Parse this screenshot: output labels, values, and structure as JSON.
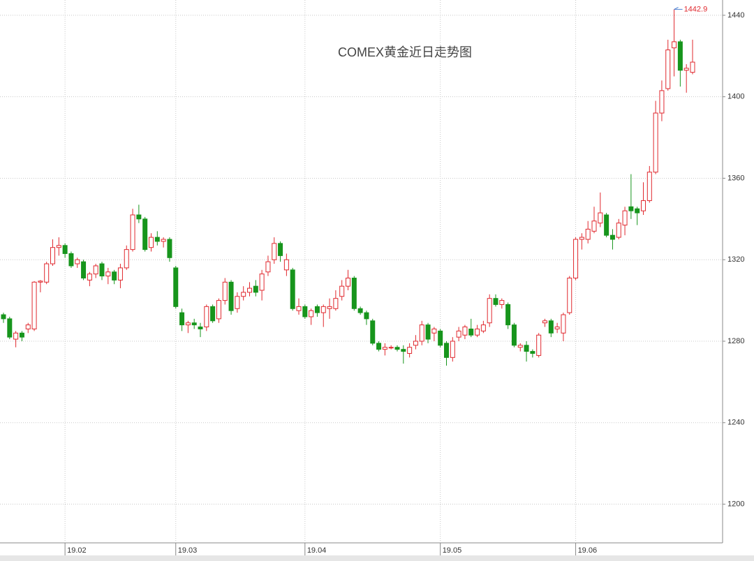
{
  "chart_data": {
    "type": "candlestick",
    "title": "COMEX黄金近日走势图",
    "categories": [
      null,
      null,
      null,
      null,
      null,
      null,
      null,
      null,
      null,
      null,
      "19.02",
      null,
      null,
      null,
      null,
      null,
      null,
      null,
      null,
      null,
      null,
      null,
      null,
      null,
      null,
      null,
      null,
      null,
      "19.03",
      null,
      null,
      null,
      null,
      null,
      null,
      null,
      null,
      null,
      null,
      null,
      null,
      null,
      null,
      null,
      null,
      null,
      null,
      null,
      null,
      "19.04",
      null,
      null,
      null,
      null,
      null,
      null,
      null,
      null,
      null,
      null,
      null,
      null,
      null,
      null,
      null,
      null,
      null,
      null,
      null,
      null,
      null,
      "19.05",
      null,
      null,
      null,
      null,
      null,
      null,
      null,
      null,
      null,
      null,
      null,
      null,
      null,
      null,
      null,
      null,
      null,
      null,
      null,
      null,
      null,
      "19.06",
      null,
      null,
      null,
      null,
      null,
      null,
      null,
      null,
      null,
      null,
      null,
      null,
      null,
      null,
      null,
      null,
      null,
      null,
      null
    ],
    "open": [
      1293,
      1291,
      1281,
      1284,
      1286,
      1286,
      1309,
      1309,
      1318,
      1326,
      1327,
      1323,
      1318,
      1319,
      1310,
      1313,
      1318,
      1312,
      1314,
      1310,
      1316,
      1325,
      1342,
      1340,
      1326,
      1331,
      1329,
      1330,
      1316,
      1294,
      1288,
      1289,
      1287,
      1287,
      1297,
      1291,
      1300,
      1309,
      1296,
      1302,
      1304,
      1307,
      1305,
      1314,
      1320,
      1328,
      1315,
      1315,
      1295,
      1297,
      1292,
      1297,
      1294,
      1296,
      1296,
      1302,
      1307,
      1311,
      1296,
      1294,
      1290,
      1279,
      1276,
      1277,
      1277,
      1276,
      1274,
      1278,
      1280,
      1288,
      1284,
      1285,
      1279,
      1272,
      1282,
      1283,
      1286,
      1283,
      1285,
      1289,
      1301,
      1298,
      1298,
      1288,
      1277,
      1278,
      1275,
      1273,
      1289,
      1290,
      1286,
      1284,
      1294,
      1311,
      1330,
      1330,
      1334,
      1338,
      1342,
      1332,
      1331,
      1337,
      1346,
      1345,
      1344,
      1349,
      1363,
      1392,
      1404,
      1424,
      1427,
      1413,
      1412
    ],
    "high": [
      1294,
      1292,
      1285,
      1285,
      1289,
      1309.5,
      1310,
      1319,
      1330,
      1331,
      1328,
      1324,
      1321,
      1320,
      1314,
      1318,
      1319,
      1316,
      1315,
      1318,
      1327,
      1345,
      1347,
      1341,
      1333,
      1334,
      1331,
      1331,
      1317,
      1296,
      1290,
      1291,
      1289,
      1298,
      1298,
      1301,
      1311,
      1310,
      1304,
      1307,
      1309,
      1310,
      1315,
      1322,
      1331,
      1329,
      1323,
      1316,
      1301,
      1298,
      1296,
      1298,
      1298,
      1301,
      1305,
      1310,
      1315,
      1312,
      1297,
      1295,
      1291,
      1280,
      1279,
      1278,
      1278,
      1278,
      1279,
      1283,
      1290,
      1289,
      1287,
      1286,
      1280,
      1282,
      1287,
      1288,
      1291,
      1288,
      1290,
      1303,
      1303,
      1301,
      1299,
      1289,
      1279,
      1280,
      1276,
      1284,
      1291,
      1291,
      1289,
      1294,
      1312,
      1331,
      1333,
      1339,
      1346,
      1353,
      1343,
      1335,
      1340,
      1346,
      1362,
      1346,
      1358,
      1366,
      1398,
      1408,
      1428,
      1442.9,
      1428,
      1416,
      1428
    ],
    "low": [
      1289,
      1281,
      1277,
      1280,
      1284,
      1285,
      1304,
      1308,
      1317,
      1322,
      1321,
      1316,
      1316,
      1310,
      1307,
      1311,
      1310,
      1308,
      1308,
      1306,
      1315,
      1324,
      1338,
      1324,
      1324,
      1327,
      1326,
      1319,
      1296,
      1285,
      1284,
      1286,
      1282,
      1285,
      1289,
      1289,
      1298,
      1293,
      1294,
      1300,
      1302,
      1302,
      1300,
      1312,
      1318,
      1319,
      1312,
      1295,
      1293,
      1291,
      1288,
      1292,
      1287,
      1291,
      1295,
      1300,
      1305,
      1295,
      1293,
      1288,
      1278,
      1275,
      1273,
      1276,
      1275,
      1269,
      1272,
      1276,
      1278,
      1279,
      1280,
      1277,
      1268,
      1270,
      1280,
      1281,
      1282,
      1282,
      1284,
      1287,
      1297,
      1296,
      1286,
      1277,
      1275,
      1270,
      1272,
      1272,
      1287,
      1282,
      1284,
      1280,
      1293,
      1310,
      1325,
      1328,
      1333,
      1336,
      1331,
      1325,
      1330,
      1332,
      1340,
      1337,
      1342,
      1348,
      1362,
      1388,
      1403,
      1410,
      1405,
      1402,
      1411
    ],
    "close": [
      1291,
      1282,
      1284,
      1282,
      1288,
      1309,
      1309.5,
      1318,
      1326,
      1327,
      1323,
      1317,
      1320,
      1311,
      1313,
      1317,
      1312,
      1314,
      1310,
      1316,
      1325,
      1342,
      1340,
      1325,
      1331,
      1329,
      1330,
      1321,
      1297,
      1288,
      1289,
      1288,
      1286,
      1297,
      1290,
      1300,
      1309,
      1295,
      1302,
      1304,
      1306,
      1304,
      1313,
      1319,
      1328,
      1322,
      1320,
      1296,
      1297,
      1292,
      1295,
      1294,
      1297,
      1297,
      1301,
      1307,
      1311,
      1296,
      1294,
      1291,
      1279,
      1276,
      1277,
      1277,
      1276,
      1275,
      1277,
      1280,
      1288,
      1281,
      1286,
      1278,
      1272,
      1280,
      1285,
      1287,
      1283,
      1286,
      1288,
      1301,
      1298,
      1300,
      1288,
      1278,
      1278,
      1275,
      1274,
      1283,
      1290,
      1284,
      1287,
      1293,
      1311,
      1330,
      1331,
      1335,
      1339,
      1343,
      1332,
      1330,
      1338,
      1344,
      1344,
      1343,
      1349,
      1363,
      1392,
      1403,
      1423,
      1427,
      1413,
      1414,
      1417
    ],
    "up_color": "#e0282e",
    "down_color": "#17951c",
    "ylim": [
      1181,
      1447.5
    ],
    "yticks": [
      1200,
      1240,
      1280,
      1320,
      1360,
      1400,
      1440
    ],
    "grid": true
  }
}
